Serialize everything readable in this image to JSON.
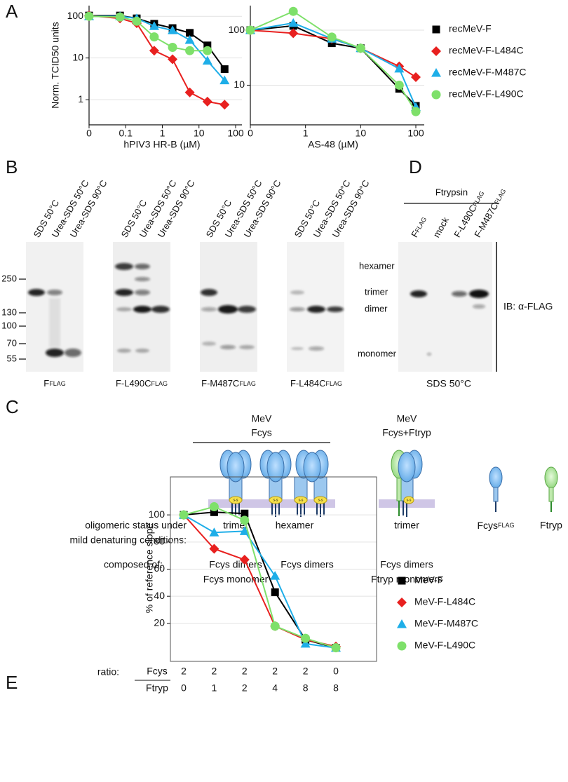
{
  "panel_labels": [
    "A",
    "B",
    "C",
    "D",
    "E"
  ],
  "chart_data": [
    {
      "type": "line",
      "xscale": "log",
      "yscale": "log",
      "xlabel": "hPIV3 HR-B (µM)",
      "ylabel": "Norm. TCID50 units",
      "x": [
        0,
        0.07,
        0.2,
        0.6,
        1.9,
        5.6,
        17,
        50
      ],
      "xlim": [
        0,
        100
      ],
      "xticks": [
        0,
        0.1,
        1,
        10,
        100
      ],
      "ylim": [
        0.25,
        180
      ],
      "yticks": [
        1,
        10,
        100
      ],
      "grid": true,
      "series": [
        {
          "name": "recMeV-F",
          "color": "#000000",
          "marker": "square",
          "values": [
            104,
            104,
            89,
            66,
            52,
            40,
            20,
            5.4
          ]
        },
        {
          "name": "recMeV-F-L484C",
          "color": "#e8201f",
          "marker": "diamond",
          "values": [
            104,
            89,
            68,
            15,
            9.3,
            1.5,
            0.9,
            0.76
          ]
        },
        {
          "name": "recMeV-F-M487C",
          "color": "#1eaee8",
          "marker": "triangle",
          "values": [
            100,
            100,
            89,
            58,
            46,
            27,
            8.6,
            2.9
          ]
        },
        {
          "name": "recMeV-F-L490C",
          "color": "#7ee06a",
          "marker": "circle",
          "values": [
            100,
            96,
            76,
            32,
            18,
            15,
            15,
            null
          ]
        }
      ]
    },
    {
      "type": "line",
      "xscale": "log",
      "yscale": "log",
      "xlabel": "AS-48 (µM)",
      "x": [
        0,
        0.6,
        3,
        10,
        50,
        100
      ],
      "xlim": [
        0,
        100
      ],
      "xticks": [
        0,
        1,
        10,
        100
      ],
      "ylim": [
        1.9,
        280
      ],
      "yticks": [
        10,
        100
      ],
      "grid": true,
      "legend": "right",
      "series": [
        {
          "name": "recMeV-F",
          "color": "#000000",
          "marker": "square",
          "values": [
            100,
            120,
            58,
            47,
            8.6,
            4.2
          ]
        },
        {
          "name": "recMeV-F-L484C",
          "color": "#e8201f",
          "marker": "diamond",
          "values": [
            100,
            88,
            70,
            47,
            22,
            14
          ]
        },
        {
          "name": "recMeV-F-M487C",
          "color": "#1eaee8",
          "marker": "triangle",
          "values": [
            100,
            135,
            70,
            47,
            20,
            4
          ]
        },
        {
          "name": "recMeV-F-L490C",
          "color": "#7ee06a",
          "marker": "circle",
          "values": [
            100,
            220,
            75,
            47,
            10,
            3.3
          ]
        }
      ]
    },
    {
      "type": "line",
      "ylabel": "% of reference slope",
      "category_title": "ratio:",
      "category_rows": [
        {
          "name": "Fcys",
          "labels": [
            "2",
            "2",
            "2",
            "2",
            "2",
            "0"
          ]
        },
        {
          "name": "Ftryp",
          "labels": [
            "0",
            "1",
            "2",
            "4",
            "8",
            "8"
          ]
        }
      ],
      "ylim": [
        -8,
        128
      ],
      "yticks": [
        20,
        40,
        60,
        80,
        100
      ],
      "grid": true,
      "legend": "right",
      "series": [
        {
          "name": "MeV-F",
          "color": "#000000",
          "marker": "square",
          "values": [
            100,
            102,
            101,
            43,
            8,
            2
          ]
        },
        {
          "name": "MeV-F-L484C",
          "color": "#e8201f",
          "marker": "diamond",
          "values": [
            100,
            75,
            67,
            18,
            8,
            3
          ]
        },
        {
          "name": "MeV-F-M487C",
          "color": "#1eaee8",
          "marker": "triangle",
          "values": [
            100,
            87,
            88,
            55,
            5,
            2
          ]
        },
        {
          "name": "MeV-F-L490C",
          "color": "#7ee06a",
          "marker": "circle",
          "values": [
            100,
            106,
            96,
            18,
            9,
            2
          ]
        }
      ]
    }
  ],
  "blots": {
    "markers": [
      250,
      130,
      100,
      70,
      55
    ],
    "bands": [
      "hexamer",
      "trimer",
      "dimer",
      "monomer"
    ],
    "gels": [
      {
        "lanes": [
          "SDS 50°C",
          "Urea-SDS 50°C",
          "Urea-SDS 90°C"
        ],
        "caption": {
          "text": "F",
          "sub": "FLAG"
        }
      },
      {
        "lanes": [
          "SDS 50°C",
          "Urea-SDS 50°C",
          "Urea-SDS 90°C"
        ],
        "caption": {
          "text": "F-L490C",
          "sub": "FLAG"
        }
      },
      {
        "lanes": [
          "SDS 50°C",
          "Urea-SDS 50°C",
          "Urea-SDS 90°C"
        ],
        "caption": {
          "text": "F-M487C",
          "sub": "FLAG"
        }
      },
      {
        "lanes": [
          "SDS 50°C",
          "Urea-SDS 50°C",
          "Urea-SDS 90°C"
        ],
        "caption": {
          "text": "F-L484C",
          "sub": "FLAG"
        }
      }
    ]
  },
  "blot_d": {
    "header": "Ftrypsin",
    "lanes": [
      {
        "text": "F",
        "sub": "FLAG"
      },
      {
        "text": "mock"
      },
      {
        "text": "F-L490C",
        "sub": "FLAG"
      },
      {
        "text": "F-M487C",
        "sub": "FLAG"
      }
    ],
    "antibody": "IB: α-FLAG",
    "condition": "SDS 50°C"
  },
  "diagram": {
    "groups": [
      [
        "MeV",
        "Fcys"
      ],
      [
        "MeV",
        "Fcys+Ftryp"
      ]
    ],
    "status_label": [
      "oligomeric status under",
      "mild denaturing conditions:"
    ],
    "composition_label": "composed of:",
    "bond_label": "s-s",
    "complexes": [
      {
        "status": "trimer",
        "composition": [
          "Fcys dimers",
          "Fcys monomer"
        ]
      },
      {
        "status": "hexamer",
        "composition": [
          "Fcys dimers"
        ]
      },
      {
        "status": "trimer",
        "composition": [
          "Fcys dimers",
          "Ftryp monomers"
        ]
      }
    ],
    "monomers": [
      {
        "text": "Fcys",
        "sub": "FLAG"
      },
      {
        "text": "Ftryp"
      }
    ]
  }
}
